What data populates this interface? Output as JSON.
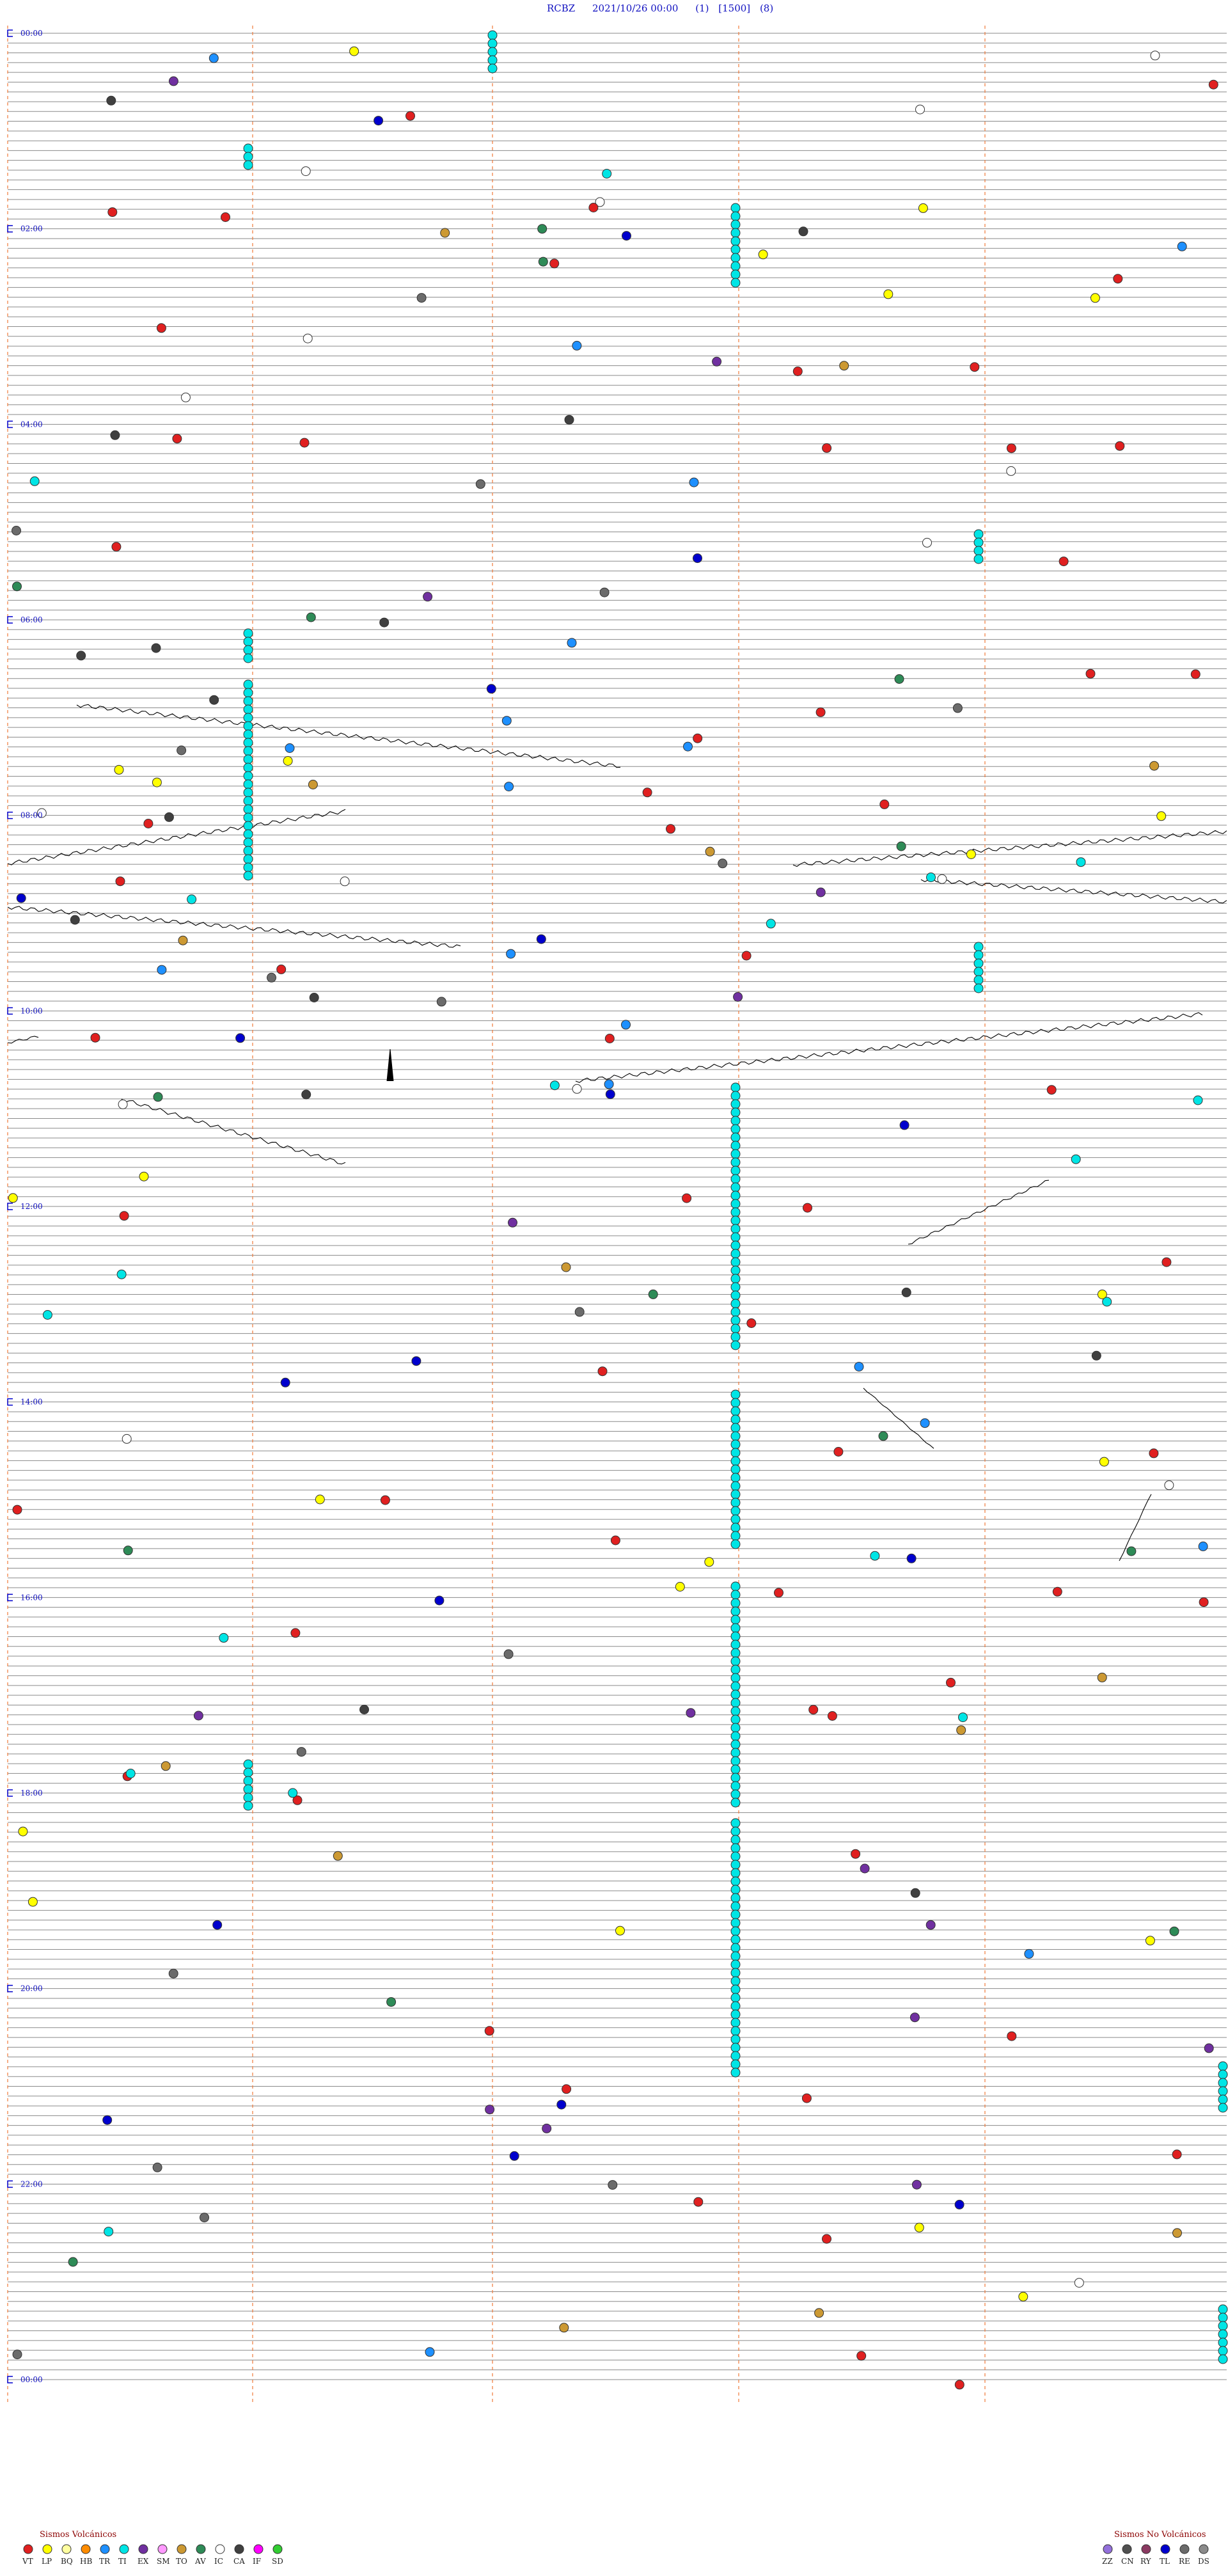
{
  "header": {
    "station": "RCBZ",
    "datetime": "2021/10/26 00:00",
    "param1": "(1)",
    "param2": "[1500]",
    "param3": "(8)"
  },
  "hour_labels": [
    "00:00",
    "02:00",
    "04:00",
    "06:00",
    "08:00",
    "10:00",
    "12:00",
    "14:00",
    "16:00",
    "18:00",
    "20:00",
    "22:00",
    "00:00"
  ],
  "legend_volcanic": {
    "title": "Sismos Volcánicos",
    "items": [
      {
        "code": "VT",
        "color": "#e02020"
      },
      {
        "code": "LP",
        "color": "#ffff00"
      },
      {
        "code": "BQ",
        "color": "#ffffa0"
      },
      {
        "code": "HB",
        "color": "#ff8c00"
      },
      {
        "code": "TR",
        "color": "#1e90ff"
      },
      {
        "code": "TI",
        "color": "#00e5e5"
      },
      {
        "code": "EX",
        "color": "#7030a0"
      },
      {
        "code": "SM",
        "color": "#ff99ff"
      },
      {
        "code": "TO",
        "color": "#cc9933"
      },
      {
        "code": "AV",
        "color": "#2e8b57"
      },
      {
        "code": "IC",
        "color": "#ffffff"
      },
      {
        "code": "CA",
        "color": "#404040"
      },
      {
        "code": "IF",
        "color": "#ff00ff"
      },
      {
        "code": "SD",
        "color": "#32cd32"
      }
    ]
  },
  "legend_nonvolcanic": {
    "title": "Sismos No Volcánicos",
    "items": [
      {
        "code": "ZZ",
        "color": "#9370db"
      },
      {
        "code": "CN",
        "color": "#505050"
      },
      {
        "code": "RY",
        "color": "#8b3a62"
      },
      {
        "code": "TL",
        "color": "#0000cd"
      },
      {
        "code": "RE",
        "color": "#6b6b6b"
      },
      {
        "code": "DS",
        "color": "#8b8b8b"
      }
    ]
  }
}
